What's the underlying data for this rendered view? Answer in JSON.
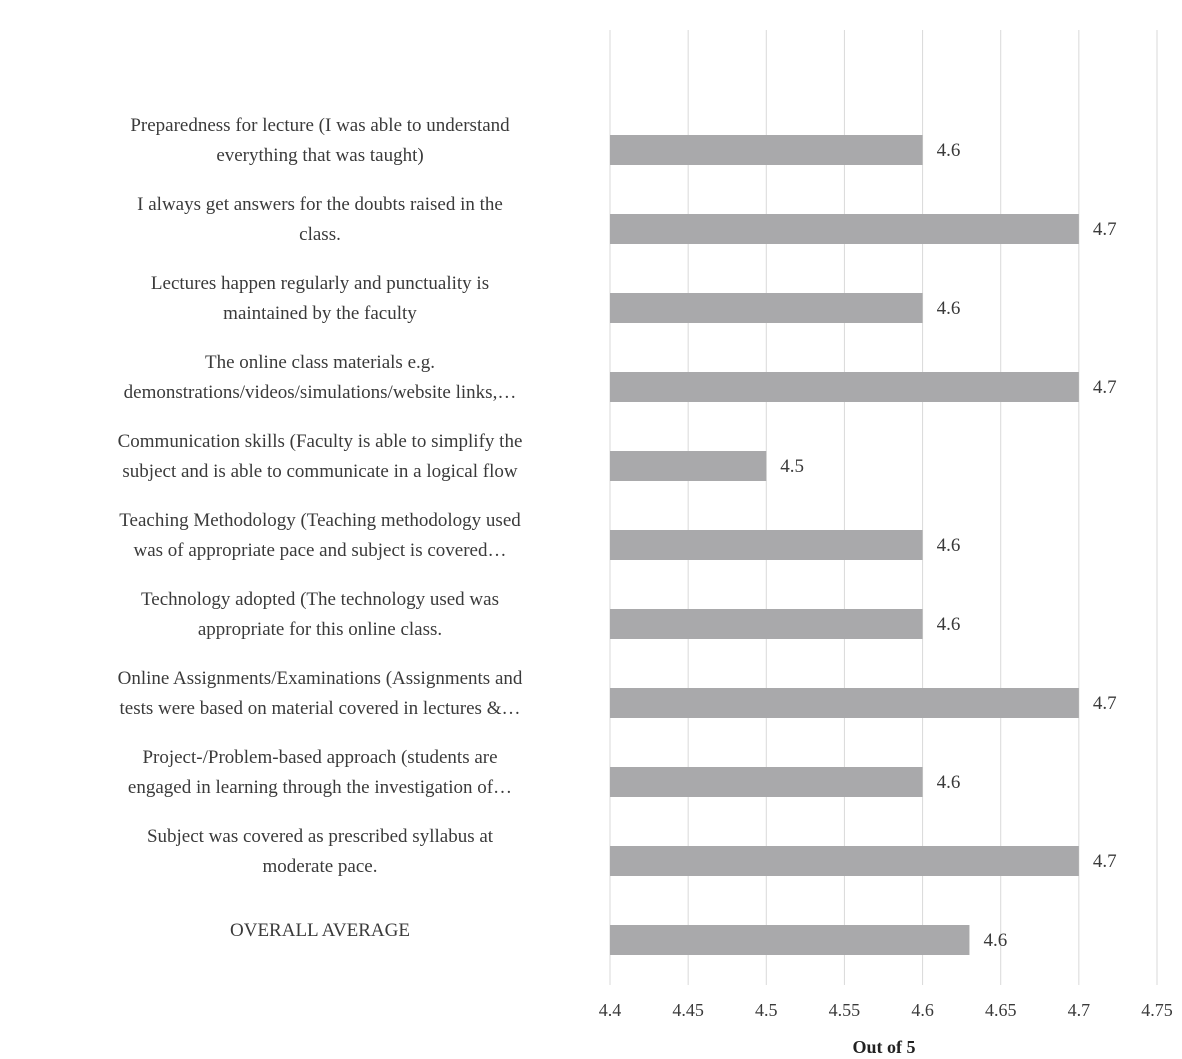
{
  "chart_data": {
    "type": "bar",
    "orientation": "horizontal",
    "categories": [
      [
        "Preparedness for lecture (I was able to understand",
        "everything that was taught)"
      ],
      [
        "I always get answers for the doubts raised in the",
        "class."
      ],
      [
        "Lectures happen regularly and punctuality is",
        "maintained by the faculty"
      ],
      [
        "The online class materials e.g.",
        "demonstrations/videos/simulations/website  links,…"
      ],
      [
        "Communication skills (Faculty is able to simplify the",
        "subject and is able to communicate in a logical flow"
      ],
      [
        "Teaching Methodology (Teaching methodology used",
        "was of appropriate pace and subject is covered…"
      ],
      [
        "Technology adopted (The technology used was",
        "appropriate for this online class."
      ],
      [
        "Online Assignments/Examinations (Assignments and",
        "tests were based on material covered in lectures &…"
      ],
      [
        "Project-/Problem-based approach (students are",
        "engaged in learning through the investigation of…"
      ],
      [
        "Subject was covered as prescribed syllabus at",
        "moderate pace."
      ],
      [
        "OVERALL AVERAGE"
      ]
    ],
    "values": [
      4.6,
      4.7,
      4.6,
      4.7,
      4.5,
      4.6,
      4.6,
      4.7,
      4.6,
      4.7,
      4.63
    ],
    "data_labels": [
      "4.6",
      "4.7",
      "4.6",
      "4.7",
      "4.5",
      "4.6",
      "4.6",
      "4.7",
      "4.6",
      "4.7",
      "4.6"
    ],
    "xlim": [
      4.4,
      4.75
    ],
    "xticks": [
      4.4,
      4.45,
      4.5,
      4.55,
      4.6,
      4.65,
      4.7,
      4.75
    ],
    "xtick_labels": [
      "4.4",
      "4.45",
      "4.5",
      "4.55",
      "4.6",
      "4.65",
      "4.7",
      "4.75"
    ],
    "xlabel": "Out of 5",
    "title": "",
    "grid": true,
    "legend": "none",
    "colors": {
      "bar": "#a9a9ab",
      "grid": "#d9d9d9",
      "text": "#3a3a3a"
    }
  }
}
